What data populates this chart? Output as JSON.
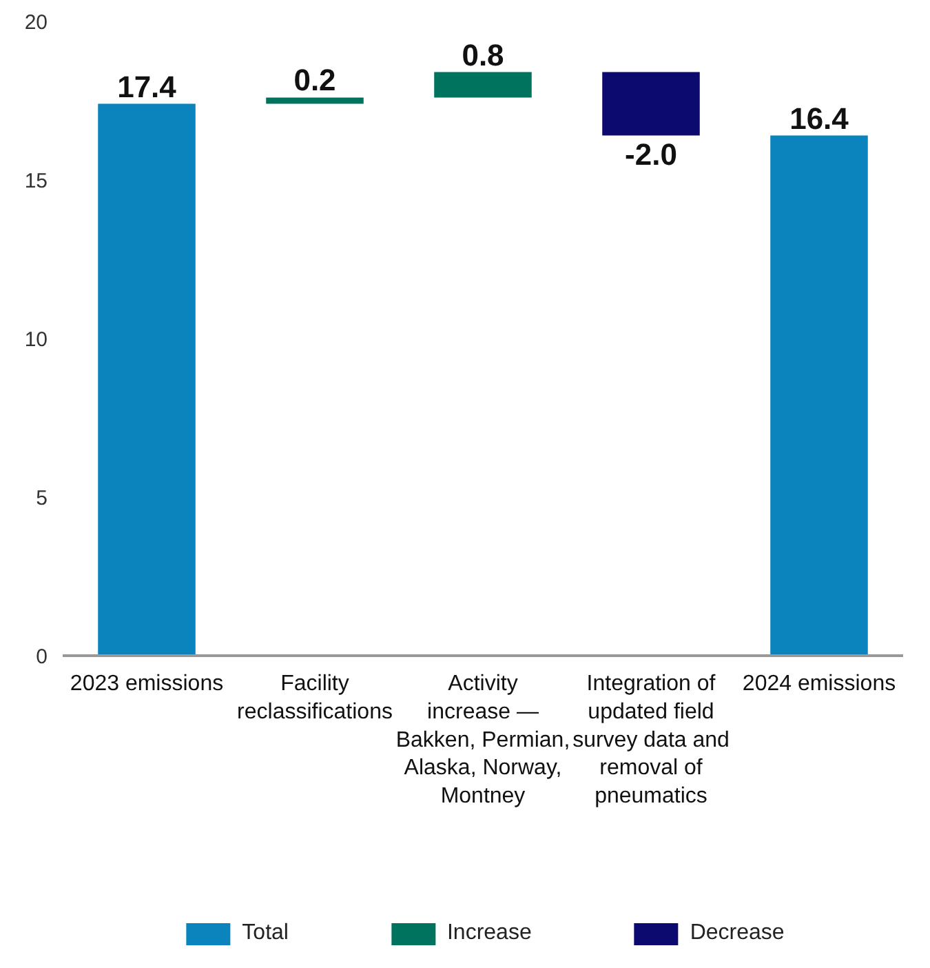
{
  "chart_data": {
    "type": "bar",
    "categories": [
      "2023 emissions",
      "Facility reclassifications",
      "Activity increase — Bakken, Permian, Alaska, Norway, Montney",
      "Integration of updated field survey data and removal of pneumatics",
      "2024 emissions"
    ],
    "series": [
      {
        "name": "Total",
        "color": "#0b84bd",
        "values": [
          17.4,
          null,
          null,
          null,
          16.4
        ],
        "value_labels": [
          "17.4",
          null,
          null,
          null,
          "16.4"
        ],
        "base": [
          0,
          null,
          null,
          null,
          0
        ]
      },
      {
        "name": "Increase",
        "color": "#00735f",
        "values": [
          null,
          0.2,
          0.8,
          null,
          null
        ],
        "value_labels": [
          null,
          "0.2",
          "0.8",
          null,
          null
        ],
        "base": [
          null,
          17.4,
          17.6,
          null,
          null
        ]
      },
      {
        "name": "Decrease",
        "color": "#0c0a6e",
        "values": [
          null,
          null,
          null,
          -2.0,
          null
        ],
        "value_labels": [
          null,
          null,
          null,
          "-2.0",
          null
        ],
        "base": [
          null,
          null,
          null,
          18.4,
          null
        ]
      }
    ],
    "ylim": [
      0,
      20
    ],
    "yticks": [
      0,
      5,
      10,
      15,
      20
    ],
    "legend": "bottom"
  }
}
